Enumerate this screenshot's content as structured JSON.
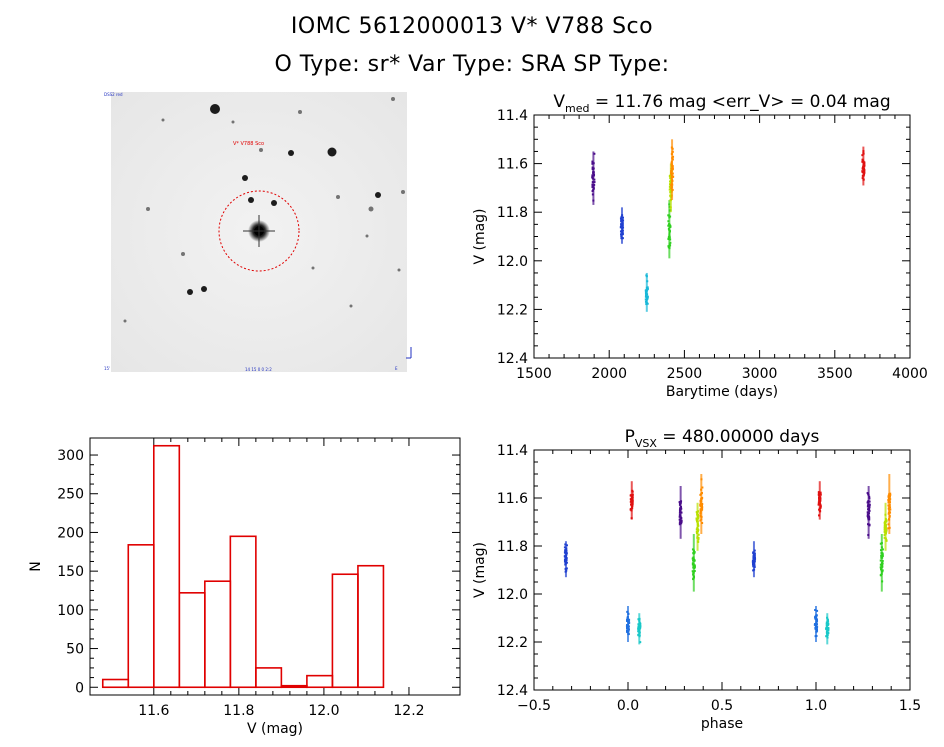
{
  "header": {
    "line1": "IOMC 5612000013    V* V788 Sco",
    "line2": "O Type: sr*  Var Type: SRA  SP Type:"
  },
  "image_panel": {
    "target_label": "V* V788 Sco",
    "corner_top_left": "DSS2 red",
    "corner_bottom_left": "15'",
    "corner_bottom_mid": "14 15 0 0 2:2",
    "corner_bottom_right": "E",
    "corner_arrow": "N"
  },
  "colors": {
    "histogram": "#e00000",
    "circle": "#e00000",
    "axes": "#000000"
  },
  "chart_data": [
    {
      "id": "lightcurve",
      "type": "scatter",
      "title": "V_med = 11.76 mag <err_V> = 0.04 mag",
      "title_parts": {
        "v": "V",
        "sub": "med",
        "rest": " = 11.76 mag <err_V> = 0.04 mag"
      },
      "xlabel": "Barytime (days)",
      "ylabel": "V (mag)",
      "xlim": [
        1500,
        4000
      ],
      "ylim": [
        11.4,
        12.4
      ],
      "y_inverted": true,
      "xticks": [
        1500,
        2000,
        2500,
        3000,
        3500,
        4000
      ],
      "yticks": [
        11.4,
        11.6,
        11.8,
        12.0,
        12.2,
        12.4
      ],
      "xtick_labels": [
        "1500",
        "2000",
        "2500",
        "3000",
        "3500",
        "4000"
      ],
      "ytick_labels": [
        "11.4",
        "11.6",
        "11.8",
        "12.0",
        "12.2",
        "12.4"
      ],
      "clusters": [
        {
          "x": 1895,
          "y": [
            11.55,
            11.77
          ],
          "color": "#4a0d8a"
        },
        {
          "x": 2085,
          "y": [
            11.78,
            11.93
          ],
          "color": "#2040d0"
        },
        {
          "x": 2250,
          "y": [
            12.05,
            12.21
          ],
          "color": "#18b8d8"
        },
        {
          "x": 2400,
          "y": [
            11.75,
            11.99
          ],
          "color": "#30d020"
        },
        {
          "x": 2410,
          "y": [
            11.6,
            11.8
          ],
          "color": "#b8e000"
        },
        {
          "x": 2418,
          "y": [
            11.5,
            11.75
          ],
          "color": "#ff8c00"
        },
        {
          "x": 3690,
          "y": [
            11.53,
            11.69
          ],
          "color": "#e01010"
        }
      ]
    },
    {
      "id": "histogram",
      "type": "bar",
      "title": "",
      "xlabel": "V (mag)",
      "ylabel": "N",
      "xlim": [
        11.45,
        12.32
      ],
      "ylim": [
        -10,
        322
      ],
      "xticks": [
        11.6,
        11.8,
        12.0,
        12.2
      ],
      "yticks": [
        0,
        50,
        100,
        150,
        200,
        250,
        300
      ],
      "xtick_labels": [
        "11.6",
        "11.8",
        "12.0",
        "12.2"
      ],
      "ytick_labels": [
        "0",
        "50",
        "100",
        "150",
        "200",
        "250",
        "300"
      ],
      "bin_edges": [
        11.48,
        11.54,
        11.6,
        11.66,
        11.72,
        11.78,
        11.84,
        11.9,
        11.96,
        12.02,
        12.08,
        12.14,
        12.2
      ],
      "values": [
        10,
        184,
        312,
        122,
        137,
        195,
        25,
        2,
        15,
        146,
        157,
        0
      ]
    },
    {
      "id": "phased",
      "type": "scatter",
      "title": "P_VSX = 480.00000 days",
      "title_parts": {
        "v": "P",
        "sub": "VSX",
        "rest": " = 480.00000 days"
      },
      "xlabel": "phase",
      "ylabel": "V (mag)",
      "xlim": [
        -0.5,
        1.5
      ],
      "ylim": [
        11.4,
        12.4
      ],
      "y_inverted": true,
      "xticks": [
        -0.5,
        0.0,
        0.5,
        1.0,
        1.5
      ],
      "yticks": [
        11.4,
        11.6,
        11.8,
        12.0,
        12.2,
        12.4
      ],
      "xtick_labels": [
        "−0.5",
        "0.0",
        "0.5",
        "1.0",
        "1.5"
      ],
      "ytick_labels": [
        "11.4",
        "11.6",
        "11.8",
        "12.0",
        "12.2",
        "12.4"
      ],
      "clusters": [
        {
          "x": -0.33,
          "y": [
            11.78,
            11.93
          ],
          "color": "#2040d0"
        },
        {
          "x": 0.0,
          "y": [
            12.05,
            12.2
          ],
          "color": "#2070e0"
        },
        {
          "x": 0.02,
          "y": [
            11.53,
            11.69
          ],
          "color": "#e01010"
        },
        {
          "x": 0.06,
          "y": [
            12.08,
            12.21
          ],
          "color": "#18c8c8"
        },
        {
          "x": 0.28,
          "y": [
            11.55,
            11.77
          ],
          "color": "#4a0d8a"
        },
        {
          "x": 0.35,
          "y": [
            11.75,
            11.99
          ],
          "color": "#30d020"
        },
        {
          "x": 0.37,
          "y": [
            11.62,
            11.82
          ],
          "color": "#b8e000"
        },
        {
          "x": 0.39,
          "y": [
            11.5,
            11.75
          ],
          "color": "#ff8c00"
        },
        {
          "x": 0.67,
          "y": [
            11.78,
            11.93
          ],
          "color": "#2040d0"
        },
        {
          "x": 1.0,
          "y": [
            12.05,
            12.2
          ],
          "color": "#2070e0"
        },
        {
          "x": 1.02,
          "y": [
            11.53,
            11.69
          ],
          "color": "#e01010"
        },
        {
          "x": 1.06,
          "y": [
            12.08,
            12.21
          ],
          "color": "#18c8c8"
        },
        {
          "x": 1.28,
          "y": [
            11.55,
            11.77
          ],
          "color": "#4a0d8a"
        },
        {
          "x": 1.35,
          "y": [
            11.75,
            11.99
          ],
          "color": "#30d020"
        },
        {
          "x": 1.37,
          "y": [
            11.62,
            11.82
          ],
          "color": "#b8e000"
        },
        {
          "x": 1.39,
          "y": [
            11.5,
            11.75
          ],
          "color": "#ff8c00"
        }
      ]
    }
  ]
}
